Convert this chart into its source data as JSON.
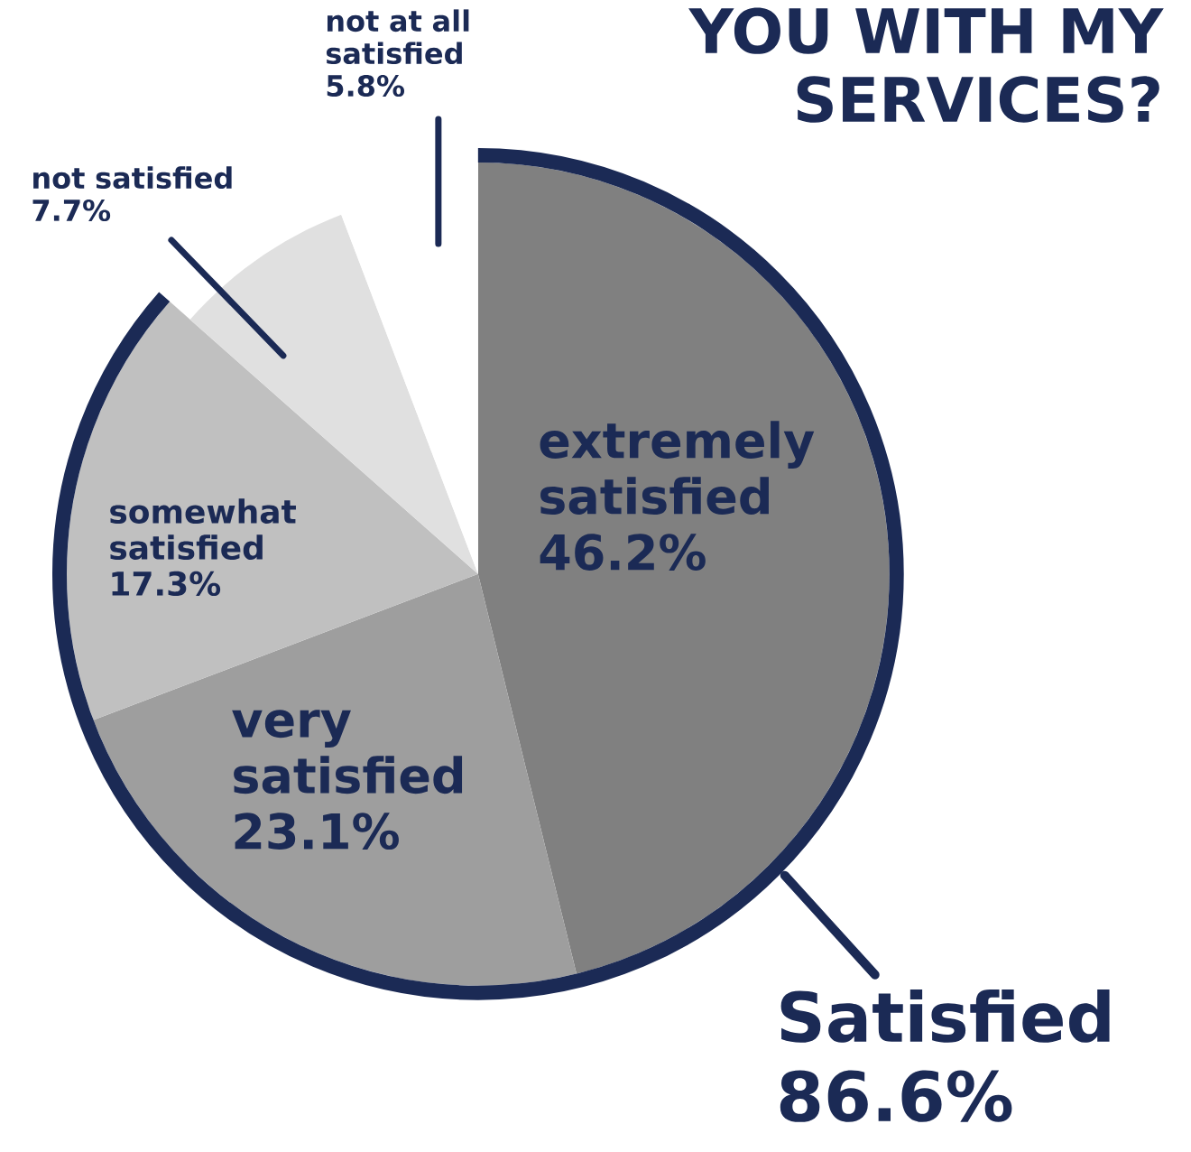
{
  "chart_data": {
    "type": "pie",
    "title": "YOU WITH MY SERVICES?",
    "categories": [
      "extremely satisfied",
      "very satisfied",
      "somewhat satisfied",
      "not satisfied",
      "not at all satisfied"
    ],
    "values": [
      46.2,
      23.1,
      17.3,
      7.7,
      5.8
    ],
    "value_labels": [
      "46.2%",
      "23.1%",
      "17.3%",
      "7.7%",
      "5.8%"
    ],
    "colors": [
      "#808080",
      "#9e9e9e",
      "#c0c0c0",
      "#e0e0e0",
      "#ffffff"
    ],
    "annotations": [
      "Satisfied 86.6%"
    ]
  }
}
